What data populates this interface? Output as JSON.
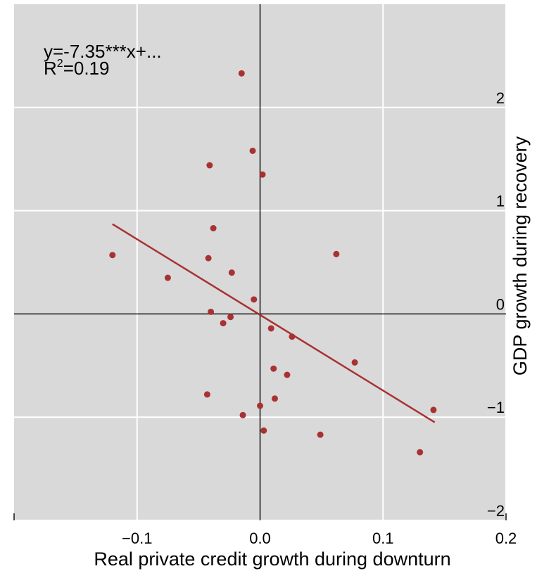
{
  "chart_data": {
    "type": "scatter",
    "xlabel": "Real private credit growth during downturn",
    "ylabel": "GDP growth during recovery",
    "xlim": [
      -0.2,
      0.2
    ],
    "ylim": [
      -2,
      3
    ],
    "x_ticks": [
      -0.1,
      0.0,
      0.1,
      0.2
    ],
    "x_tick_labels": [
      "−0.1",
      "0.0",
      "0.1",
      "0.2"
    ],
    "y_ticks": [
      -2,
      -1,
      0,
      1,
      2
    ],
    "y_tick_labels": [
      "−2",
      "−1",
      "0",
      "1",
      "2"
    ],
    "y_axis_side": "right",
    "grid": true,
    "background_color": "#d9d9d9",
    "marker_color": "#a83232",
    "annotation": {
      "equation": "y=-7.35***x+...",
      "r2_prefix": "R",
      "r2_exp": "2",
      "r2_value": "=0.19"
    },
    "fit_line": {
      "x": [
        -0.12,
        0.142
      ],
      "y": [
        0.87,
        -1.05
      ]
    },
    "points": [
      {
        "x": -0.015,
        "y": 2.33
      },
      {
        "x": -0.006,
        "y": 1.58
      },
      {
        "x": -0.041,
        "y": 1.44
      },
      {
        "x": 0.002,
        "y": 1.35
      },
      {
        "x": -0.038,
        "y": 0.83
      },
      {
        "x": -0.12,
        "y": 0.57
      },
      {
        "x": 0.062,
        "y": 0.58
      },
      {
        "x": -0.042,
        "y": 0.54
      },
      {
        "x": -0.023,
        "y": 0.4
      },
      {
        "x": -0.075,
        "y": 0.35
      },
      {
        "x": -0.005,
        "y": 0.14
      },
      {
        "x": -0.04,
        "y": 0.02
      },
      {
        "x": -0.024,
        "y": -0.03
      },
      {
        "x": -0.03,
        "y": -0.09
      },
      {
        "x": 0.009,
        "y": -0.14
      },
      {
        "x": 0.026,
        "y": -0.22
      },
      {
        "x": 0.077,
        "y": -0.47
      },
      {
        "x": 0.011,
        "y": -0.53
      },
      {
        "x": 0.022,
        "y": -0.59
      },
      {
        "x": -0.043,
        "y": -0.78
      },
      {
        "x": 0.012,
        "y": -0.82
      },
      {
        "x": 0.0,
        "y": -0.89
      },
      {
        "x": 0.141,
        "y": -0.93
      },
      {
        "x": -0.014,
        "y": -0.98
      },
      {
        "x": 0.003,
        "y": -1.13
      },
      {
        "x": 0.049,
        "y": -1.17
      },
      {
        "x": 0.13,
        "y": -1.34
      }
    ]
  }
}
